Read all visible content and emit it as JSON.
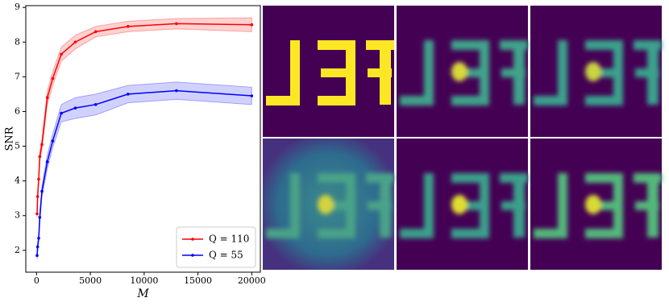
{
  "chart_data": {
    "type": "line",
    "x_label": "M",
    "y_label": "SNR",
    "x": [
      50,
      100,
      200,
      300,
      500,
      1000,
      1500,
      2300,
      3600,
      5500,
      8500,
      13000,
      20000
    ],
    "series": [
      {
        "name": "Q = 110",
        "color": "#ff0000",
        "values": [
          3.05,
          3.55,
          4.05,
          4.7,
          5.05,
          6.4,
          6.95,
          7.65,
          8.0,
          8.3,
          8.45,
          8.53,
          8.5
        ],
        "error": [
          0.1,
          0.1,
          0.1,
          0.15,
          0.15,
          0.2,
          0.2,
          0.2,
          0.2,
          0.15,
          0.15,
          0.15,
          0.2
        ]
      },
      {
        "name": "Q = 55",
        "color": "#0000ff",
        "values": [
          1.85,
          2.1,
          2.35,
          2.95,
          3.7,
          4.55,
          5.15,
          5.95,
          6.1,
          6.2,
          6.5,
          6.6,
          6.45
        ],
        "error": [
          0.1,
          0.1,
          0.1,
          0.15,
          0.15,
          0.2,
          0.2,
          0.25,
          0.3,
          0.3,
          0.25,
          0.25,
          0.25
        ]
      }
    ],
    "xlim": [
      -1000,
      20800
    ],
    "ylim": [
      1.37,
      9.05
    ],
    "xticks": [
      0,
      5000,
      10000,
      15000,
      20000
    ],
    "yticks": [
      2,
      3,
      4,
      5,
      6,
      7,
      8,
      9
    ],
    "legend": "lower right"
  }
}
